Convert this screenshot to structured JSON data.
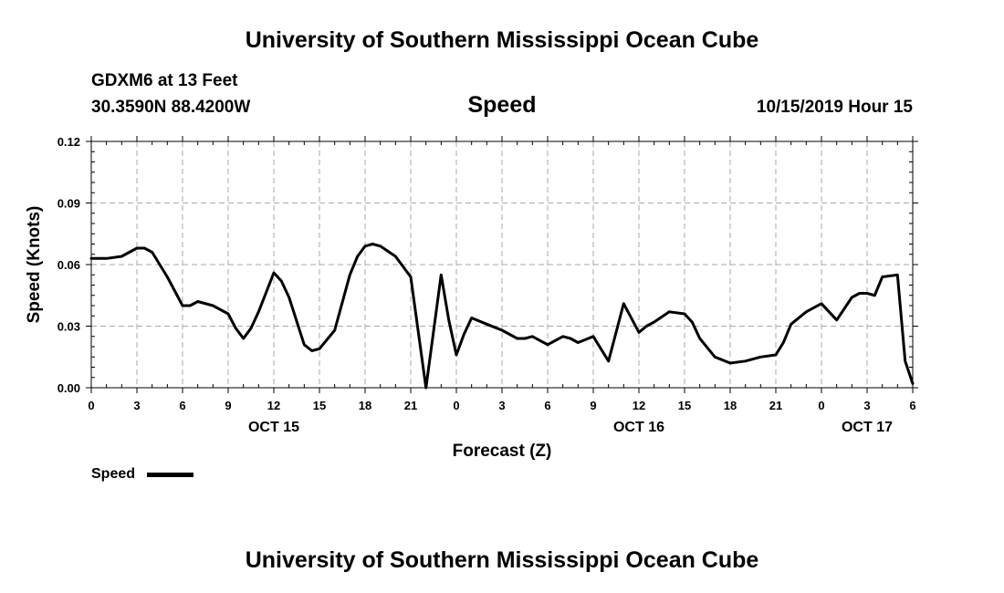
{
  "header": {
    "title": "University of Southern Mississippi Ocean Cube",
    "station": "GDXM6 at 13 Feet",
    "coordinates": "30.3590N 88.4200W",
    "datetime": "10/15/2019 Hour 15"
  },
  "footer": {
    "title": "University of Southern Mississippi Ocean Cube"
  },
  "legend": {
    "label": "Speed",
    "color": "#000000"
  },
  "chart_data": {
    "type": "line",
    "title": "Speed",
    "xlabel": "Forecast (Z)",
    "ylabel": "Speed (Knots)",
    "ylim": [
      0,
      0.12
    ],
    "yticks": [
      "0.00",
      "0.03",
      "0.06",
      "0.09",
      "0.12"
    ],
    "xlim": [
      0,
      54
    ],
    "xtick_labels": [
      "0",
      "3",
      "6",
      "9",
      "12",
      "15",
      "18",
      "21",
      "0",
      "3",
      "6",
      "9",
      "12",
      "15",
      "18",
      "21",
      "0",
      "3",
      "6"
    ],
    "date_labels": [
      {
        "label": "OCT 15",
        "hour": 12
      },
      {
        "label": "OCT 16",
        "hour": 36
      },
      {
        "label": "OCT 17",
        "hour": 51
      }
    ],
    "grid": true,
    "series": [
      {
        "name": "Speed",
        "color": "#000000",
        "x": [
          0,
          1,
          2,
          3,
          3.5,
          4,
          5,
          6,
          6.5,
          7,
          8,
          9,
          9.5,
          10,
          10.5,
          11,
          12,
          12.5,
          13,
          14,
          14.5,
          15,
          16,
          17,
          17.5,
          18,
          18.5,
          19,
          20,
          21,
          22,
          23,
          23.5,
          24,
          24.5,
          25,
          26,
          27,
          28,
          28.5,
          29,
          30,
          31,
          31.5,
          32,
          33,
          34,
          35,
          36,
          36.5,
          37,
          38,
          39,
          39.5,
          40,
          41,
          42,
          43,
          44,
          45,
          45.5,
          46,
          47,
          48,
          49,
          50,
          50.5,
          51,
          51.5,
          52,
          53,
          53.5,
          54
        ],
        "y": [
          0.063,
          0.063,
          0.064,
          0.068,
          0.068,
          0.066,
          0.054,
          0.04,
          0.04,
          0.042,
          0.04,
          0.036,
          0.029,
          0.024,
          0.029,
          0.037,
          0.056,
          0.052,
          0.044,
          0.021,
          0.018,
          0.019,
          0.028,
          0.055,
          0.064,
          0.069,
          0.07,
          0.069,
          0.064,
          0.054,
          0.0,
          0.055,
          0.033,
          0.016,
          0.026,
          0.034,
          0.031,
          0.028,
          0.024,
          0.024,
          0.025,
          0.021,
          0.025,
          0.024,
          0.022,
          0.025,
          0.013,
          0.041,
          0.027,
          0.03,
          0.032,
          0.037,
          0.036,
          0.032,
          0.024,
          0.015,
          0.012,
          0.013,
          0.015,
          0.016,
          0.022,
          0.031,
          0.037,
          0.041,
          0.033,
          0.044,
          0.046,
          0.046,
          0.045,
          0.054,
          0.055,
          0.013,
          0.002
        ]
      }
    ]
  }
}
